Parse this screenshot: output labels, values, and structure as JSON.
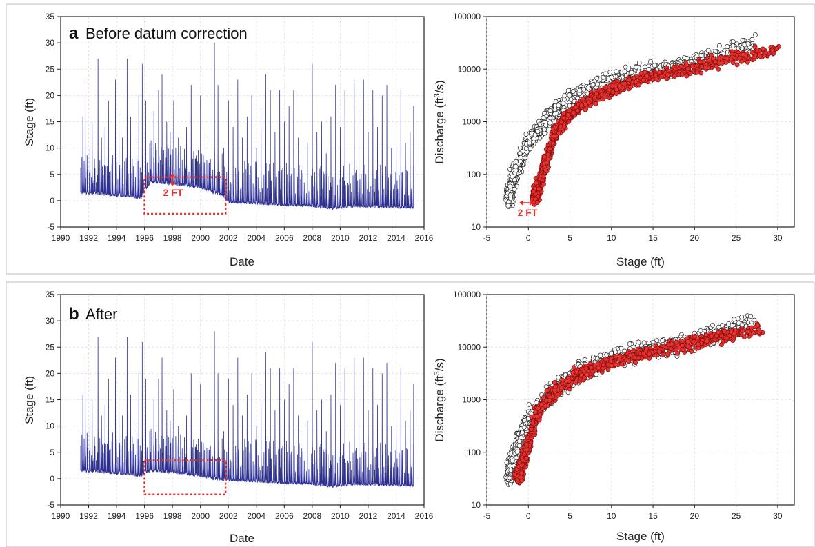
{
  "chart_data": [
    {
      "type": "line",
      "panel": "a",
      "title": "Before datum correction",
      "xlabel": "Date",
      "ylabel": "Stage (ft)",
      "xlim": [
        "1990",
        "2016"
      ],
      "ylim": [
        -5,
        35
      ],
      "x_ticks": [
        "1990",
        "1992",
        "1994",
        "1996",
        "1998",
        "2000",
        "2002",
        "2004",
        "2006",
        "2008",
        "2010",
        "2012",
        "2014",
        "2016"
      ],
      "y_ticks": [
        "-5",
        "0",
        "5",
        "10",
        "15",
        "20",
        "25",
        "30",
        "35"
      ],
      "grid": true,
      "color": "#2e3192",
      "series": [
        {
          "baseline": [
            [
              "1991-06",
              1.5
            ],
            [
              "1993-01",
              1.2
            ],
            [
              "1995-01",
              0.8
            ],
            [
              "1995-10",
              0.5
            ],
            [
              "1996-06",
              3.5
            ],
            [
              "1998-01",
              3.2
            ],
            [
              "2000-01",
              2.5
            ],
            [
              "2001-08",
              1.0
            ],
            [
              "2002-01",
              -0.3
            ],
            [
              "2004-01",
              -0.5
            ],
            [
              "2006-01",
              -0.8
            ],
            [
              "2008-01",
              -1.0
            ],
            [
              "2009-06",
              -1.5
            ],
            [
              "2011-01",
              -1.0
            ],
            [
              "2013-01",
              -1.2
            ],
            [
              "2015-04",
              -1.3
            ]
          ],
          "peaks": [
            [
              "1991-08",
              16
            ],
            [
              "1991-10",
              23
            ],
            [
              "1992-02",
              10
            ],
            [
              "1992-04",
              15
            ],
            [
              "1992-06",
              8
            ],
            [
              "1992-09",
              27
            ],
            [
              "1992-12",
              12
            ],
            [
              "1993-03",
              14
            ],
            [
              "1993-06",
              19
            ],
            [
              "1993-09",
              9
            ],
            [
              "1993-12",
              23
            ],
            [
              "1994-03",
              17
            ],
            [
              "1994-06",
              12
            ],
            [
              "1994-10",
              27
            ],
            [
              "1995-01",
              16
            ],
            [
              "1995-04",
              11
            ],
            [
              "1995-08",
              20
            ],
            [
              "1995-11",
              26
            ],
            [
              "1996-02",
              19
            ],
            [
              "1996-06",
              6
            ],
            [
              "1996-09",
              17
            ],
            [
              "1997-01",
              21
            ],
            [
              "1997-04",
              24
            ],
            [
              "1997-08",
              15
            ],
            [
              "1997-11",
              13
            ],
            [
              "1998-02",
              19
            ],
            [
              "1998-06",
              12
            ],
            [
              "1998-10",
              10
            ],
            [
              "1999-01",
              14
            ],
            [
              "1999-05",
              22
            ],
            [
              "1999-09",
              8
            ],
            [
              "2000-01",
              20
            ],
            [
              "2000-05",
              12
            ],
            [
              "2000-09",
              8
            ],
            [
              "2001-01",
              30
            ],
            [
              "2001-04",
              22
            ],
            [
              "2001-09",
              10
            ],
            [
              "2002-01",
              19
            ],
            [
              "2002-05",
              14
            ],
            [
              "2002-09",
              23
            ],
            [
              "2003-01",
              12
            ],
            [
              "2003-05",
              16
            ],
            [
              "2003-09",
              20
            ],
            [
              "2004-01",
              10
            ],
            [
              "2004-05",
              18
            ],
            [
              "2004-09",
              24
            ],
            [
              "2005-01",
              21
            ],
            [
              "2005-05",
              13
            ],
            [
              "2005-09",
              21
            ],
            [
              "2006-01",
              15
            ],
            [
              "2006-05",
              18
            ],
            [
              "2006-09",
              21
            ],
            [
              "2007-01",
              12
            ],
            [
              "2007-05",
              9
            ],
            [
              "2007-09",
              11
            ],
            [
              "2008-01",
              26
            ],
            [
              "2008-05",
              13
            ],
            [
              "2008-09",
              15
            ],
            [
              "2009-01",
              9
            ],
            [
              "2009-05",
              16
            ],
            [
              "2009-09",
              22
            ],
            [
              "2010-01",
              14
            ],
            [
              "2010-05",
              21
            ],
            [
              "2010-09",
              7
            ],
            [
              "2011-01",
              23
            ],
            [
              "2011-05",
              17
            ],
            [
              "2011-09",
              23
            ],
            [
              "2012-01",
              13
            ],
            [
              "2012-05",
              21
            ],
            [
              "2012-09",
              14
            ],
            [
              "2013-01",
              20
            ],
            [
              "2013-05",
              22
            ],
            [
              "2013-09",
              10
            ],
            [
              "2014-01",
              15
            ],
            [
              "2014-05",
              21
            ],
            [
              "2014-09",
              11
            ],
            [
              "2015-01",
              13
            ],
            [
              "2015-04",
              18
            ]
          ]
        }
      ],
      "annotation": {
        "label": "2 FT",
        "box_x": [
          "1996",
          "2001.8"
        ],
        "box_y": [
          -2.5,
          4.5
        ],
        "color": "#e8312f"
      }
    },
    {
      "type": "scatter",
      "panel": "a",
      "xlabel": "Stage (ft)",
      "ylabel_main": "Discharge (ft",
      "ylabel_sup": "3",
      "ylabel_tail": "/s)",
      "xlim": [
        -5,
        32
      ],
      "ylim": [
        10,
        100000
      ],
      "yscale": "log",
      "x_ticks": [
        "-5",
        "0",
        "5",
        "10",
        "15",
        "20",
        "25",
        "30"
      ],
      "y_ticks": [
        "10",
        "100",
        "1000",
        "10000",
        "100000"
      ],
      "grid": true,
      "series": [
        {
          "name": "",
          "color": "#ffffff",
          "edge": "#222222",
          "curve": [
            [
              -2.3,
              35
            ],
            [
              -1.5,
              120
            ],
            [
              0,
              400
            ],
            [
              3,
              1500
            ],
            [
              6,
              3300
            ],
            [
              10,
              6000
            ],
            [
              15,
              9000
            ],
            [
              20,
              13000
            ],
            [
              27,
              30000
            ]
          ]
        },
        {
          "name": "",
          "color": "#e8312f",
          "edge": "#7a1010",
          "curve": [
            [
              0.8,
              35
            ],
            [
              2,
              150
            ],
            [
              3,
              550
            ],
            [
              5,
              1400
            ],
            [
              8,
              3000
            ],
            [
              12,
              5500
            ],
            [
              18,
              9000
            ],
            [
              24,
              15000
            ],
            [
              30,
              23000
            ]
          ]
        }
      ],
      "annotation": {
        "label": "2 FT",
        "color": "#e8312f"
      }
    },
    {
      "type": "line",
      "panel": "b",
      "title": "After",
      "xlabel": "Date",
      "ylabel": "Stage (ft)",
      "xlim": [
        "1990",
        "2016"
      ],
      "ylim": [
        -5,
        35
      ],
      "x_ticks": [
        "1990",
        "1992",
        "1994",
        "1996",
        "1998",
        "2000",
        "2002",
        "2004",
        "2006",
        "2008",
        "2010",
        "2012",
        "2014",
        "2016"
      ],
      "y_ticks": [
        "-5",
        "0",
        "5",
        "10",
        "15",
        "20",
        "25",
        "30",
        "35"
      ],
      "grid": true,
      "color": "#2e3192",
      "series": [
        {
          "baseline": [
            [
              "1991-06",
              1.5
            ],
            [
              "1993-01",
              1.2
            ],
            [
              "1995-01",
              0.8
            ],
            [
              "1995-10",
              0.5
            ],
            [
              "1996-06",
              1.5
            ],
            [
              "1998-01",
              1.2
            ],
            [
              "2000-01",
              0.5
            ],
            [
              "2001-08",
              -0.3
            ],
            [
              "2002-01",
              -0.3
            ],
            [
              "2004-01",
              -0.5
            ],
            [
              "2006-01",
              -0.8
            ],
            [
              "2008-01",
              -1.0
            ],
            [
              "2009-06",
              -1.5
            ],
            [
              "2011-01",
              -1.0
            ],
            [
              "2013-01",
              -1.2
            ],
            [
              "2015-04",
              -1.3
            ]
          ],
          "peaks": [
            [
              "1991-08",
              16
            ],
            [
              "1991-10",
              23
            ],
            [
              "1992-02",
              10
            ],
            [
              "1992-04",
              15
            ],
            [
              "1992-06",
              8
            ],
            [
              "1992-09",
              27
            ],
            [
              "1992-12",
              12
            ],
            [
              "1993-03",
              14
            ],
            [
              "1993-06",
              19
            ],
            [
              "1993-09",
              9
            ],
            [
              "1993-12",
              23
            ],
            [
              "1994-03",
              17
            ],
            [
              "1994-06",
              12
            ],
            [
              "1994-10",
              27
            ],
            [
              "1995-01",
              16
            ],
            [
              "1995-04",
              11
            ],
            [
              "1995-08",
              20
            ],
            [
              "1995-11",
              26
            ],
            [
              "1996-02",
              19
            ],
            [
              "1996-06",
              5
            ],
            [
              "1996-09",
              15
            ],
            [
              "1997-01",
              19
            ],
            [
              "1997-04",
              23
            ],
            [
              "1997-08",
              13
            ],
            [
              "1997-11",
              11
            ],
            [
              "1998-02",
              17
            ],
            [
              "1998-06",
              10
            ],
            [
              "1998-10",
              8
            ],
            [
              "1999-01",
              12
            ],
            [
              "1999-05",
              20
            ],
            [
              "1999-09",
              6
            ],
            [
              "2000-01",
              18
            ],
            [
              "2000-05",
              10
            ],
            [
              "2000-09",
              6
            ],
            [
              "2001-01",
              28
            ],
            [
              "2001-04",
              20
            ],
            [
              "2001-09",
              9
            ],
            [
              "2002-01",
              19
            ],
            [
              "2002-05",
              14
            ],
            [
              "2002-09",
              23
            ],
            [
              "2003-01",
              12
            ],
            [
              "2003-05",
              16
            ],
            [
              "2003-09",
              20
            ],
            [
              "2004-01",
              10
            ],
            [
              "2004-05",
              18
            ],
            [
              "2004-09",
              24
            ],
            [
              "2005-01",
              21
            ],
            [
              "2005-05",
              13
            ],
            [
              "2005-09",
              21
            ],
            [
              "2006-01",
              15
            ],
            [
              "2006-05",
              18
            ],
            [
              "2006-09",
              21
            ],
            [
              "2007-01",
              12
            ],
            [
              "2007-05",
              9
            ],
            [
              "2007-09",
              11
            ],
            [
              "2008-01",
              26
            ],
            [
              "2008-05",
              13
            ],
            [
              "2008-09",
              15
            ],
            [
              "2009-01",
              9
            ],
            [
              "2009-05",
              16
            ],
            [
              "2009-09",
              22
            ],
            [
              "2010-01",
              14
            ],
            [
              "2010-05",
              21
            ],
            [
              "2010-09",
              7
            ],
            [
              "2011-01",
              23
            ],
            [
              "2011-05",
              17
            ],
            [
              "2011-09",
              23
            ],
            [
              "2012-01",
              13
            ],
            [
              "2012-05",
              21
            ],
            [
              "2012-09",
              14
            ],
            [
              "2013-01",
              20
            ],
            [
              "2013-05",
              22
            ],
            [
              "2013-09",
              10
            ],
            [
              "2014-01",
              15
            ],
            [
              "2014-05",
              21
            ],
            [
              "2014-09",
              11
            ],
            [
              "2015-01",
              13
            ],
            [
              "2015-04",
              18
            ]
          ]
        }
      ],
      "annotation": {
        "box_x": [
          "1996",
          "2001.8"
        ],
        "box_y": [
          -3,
          3.5
        ],
        "color": "#e8312f"
      }
    },
    {
      "type": "scatter",
      "panel": "b",
      "xlabel": "Stage (ft)",
      "ylabel_main": "Discharge (ft",
      "ylabel_sup": "3",
      "ylabel_tail": "/s)",
      "xlim": [
        -5,
        32
      ],
      "ylim": [
        10,
        100000
      ],
      "yscale": "log",
      "x_ticks": [
        "-5",
        "0",
        "5",
        "10",
        "15",
        "20",
        "25",
        "30"
      ],
      "y_ticks": [
        "10",
        "100",
        "1000",
        "10000",
        "100000"
      ],
      "grid": true,
      "series": [
        {
          "name": "",
          "color": "#ffffff",
          "edge": "#222222",
          "curve": [
            [
              -2.3,
              35
            ],
            [
              -1.5,
              120
            ],
            [
              0,
              400
            ],
            [
              3,
              1500
            ],
            [
              6,
              3300
            ],
            [
              10,
              6000
            ],
            [
              15,
              9000
            ],
            [
              20,
              13000
            ],
            [
              27,
              30000
            ]
          ]
        },
        {
          "name": "",
          "color": "#e8312f",
          "edge": "#7a1010",
          "curve": [
            [
              -1.2,
              35
            ],
            [
              0,
              150
            ],
            [
              1,
              550
            ],
            [
              3,
              1400
            ],
            [
              6,
              3000
            ],
            [
              10,
              5500
            ],
            [
              16,
              9000
            ],
            [
              22,
              15000
            ],
            [
              28,
              22000
            ]
          ]
        }
      ]
    }
  ]
}
